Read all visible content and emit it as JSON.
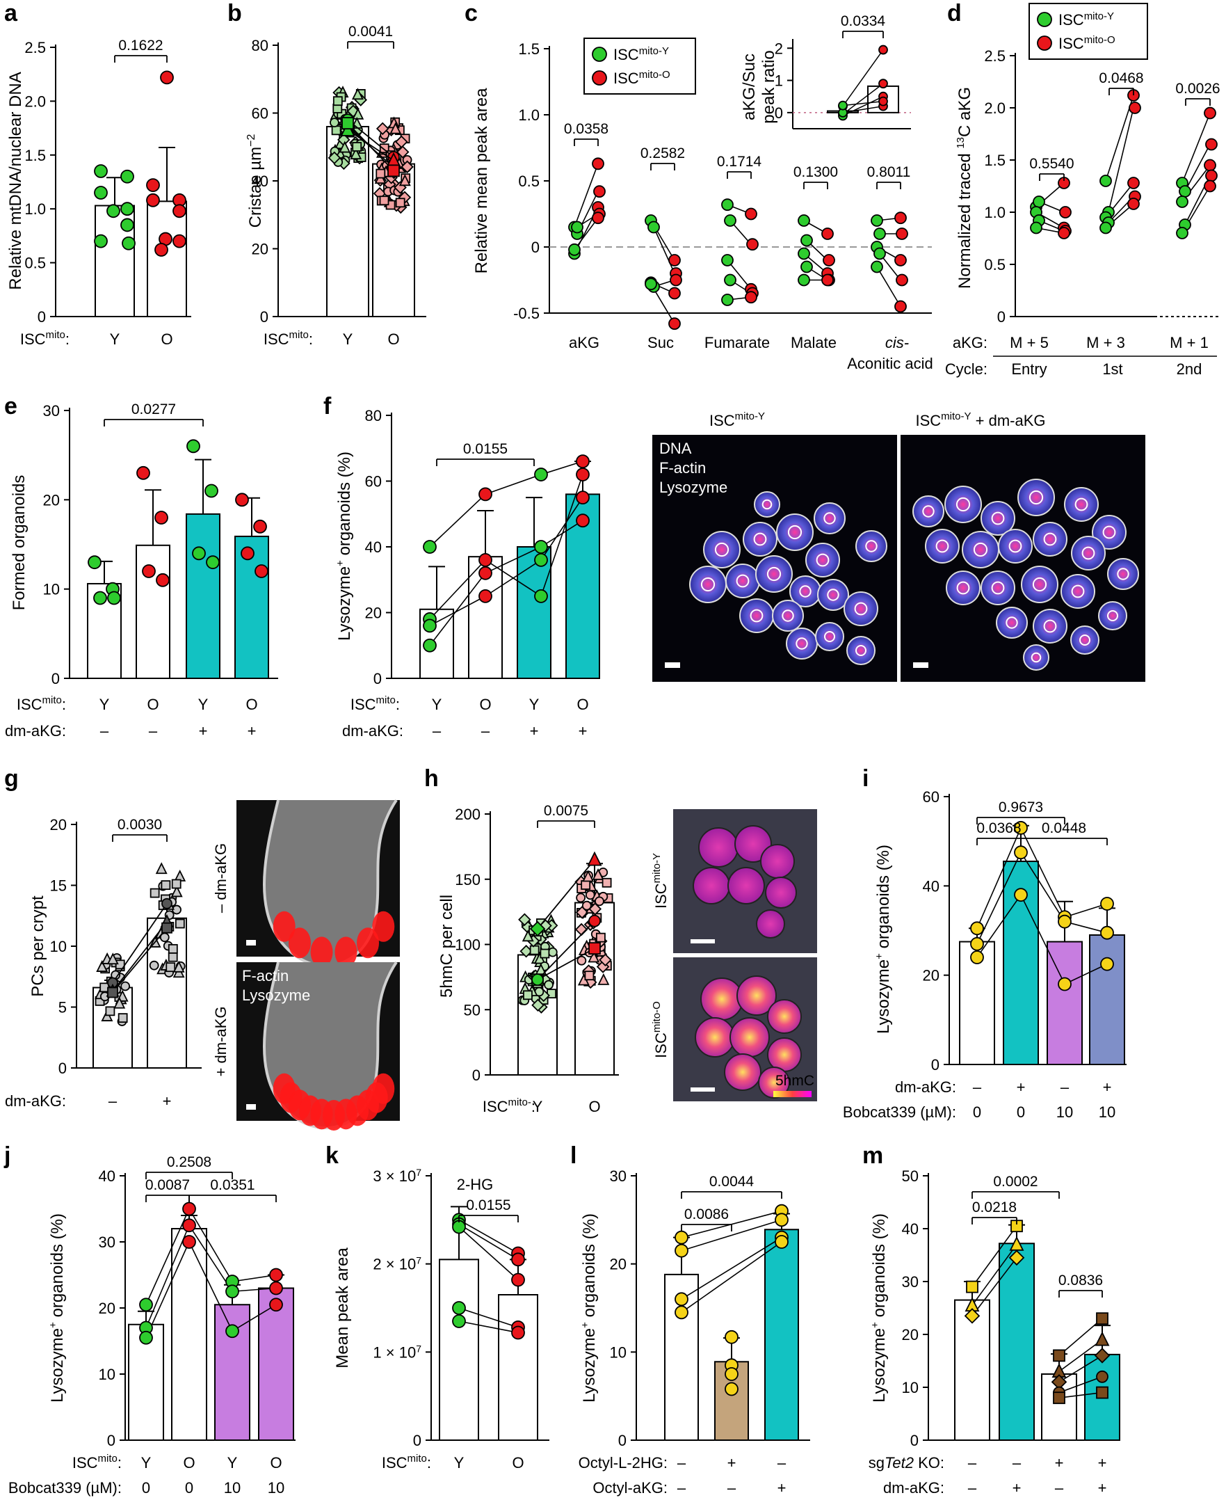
{
  "colors": {
    "young": "#2ecc2e",
    "old": "#e8161b",
    "teal": "#12c2c2",
    "purple": "#c77de0",
    "slate": "#7f8fc8",
    "gold": "#f5d318",
    "tan": "#c4a47c",
    "brown": "#7a4a1c",
    "grey": "#c8c8c8"
  },
  "panels": {
    "a": {
      "label": "a",
      "ylabel": "Relative mtDNA/nuclear DNA",
      "yticks": [
        "0",
        "0.5",
        "1.0",
        "1.5",
        "2.0",
        "2.5"
      ],
      "row_label": "ISCmito:",
      "cats": [
        "Y",
        "O"
      ],
      "pvalues": [
        "0.1622"
      ]
    },
    "b": {
      "label": "b",
      "ylabel": "Cristae µm−2",
      "yticks": [
        "0",
        "20",
        "40",
        "60",
        "80"
      ],
      "row_label": "ISCmito:",
      "cats": [
        "Y",
        "O"
      ],
      "pvalues": [
        "0.0041"
      ]
    },
    "c": {
      "label": "c",
      "ylabel": "Relative mean peak area",
      "yticks": [
        "-0.5",
        "0",
        "0.5",
        "1.0",
        "1.5"
      ],
      "cats": [
        "aKG",
        "Suc",
        "Fumarate",
        "Malate",
        "cis-",
        "Aconitic acid"
      ],
      "pvalues": [
        "0.0358",
        "0.2582",
        "0.1714",
        "0.1300",
        "0.8011"
      ],
      "legend": [
        "ISCmito-Y",
        "ISCmito-O"
      ],
      "inset": {
        "ylabel": "aKG/Suc peak ratio",
        "yticks": [
          "0",
          "1",
          "2"
        ],
        "pvalue": "0.0334"
      }
    },
    "d": {
      "label": "d",
      "ylabel": "Normalized traced 13C aKG",
      "yticks": [
        "0",
        "0.5",
        "1.0",
        "1.5",
        "2.0",
        "2.5"
      ],
      "legend": [
        "ISCmito-Y",
        "ISCmito-O"
      ],
      "row1_label": "aKG:",
      "row1": [
        "M + 5",
        "M + 3",
        "M + 1"
      ],
      "row2_label": "Cycle:",
      "row2": [
        "Entry",
        "1st",
        "2nd"
      ],
      "pvalues": [
        "0.5540",
        "0.0468",
        "0.0026"
      ]
    },
    "e": {
      "label": "e",
      "ylabel": "Formed organoids",
      "yticks": [
        "0",
        "10",
        "20",
        "30"
      ],
      "row1_label": "ISCmito:",
      "row1": [
        "Y",
        "O",
        "Y",
        "O"
      ],
      "row2_label": "dm-aKG:",
      "row2": [
        "–",
        "–",
        "+",
        "+"
      ],
      "pvalues": [
        "0.0277"
      ]
    },
    "f": {
      "label": "f",
      "ylabel": "Lysozyme+ organoids (%)",
      "yticks": [
        "0",
        "20",
        "40",
        "60",
        "80"
      ],
      "row1_label": "ISCmito:",
      "row1": [
        "Y",
        "O",
        "Y",
        "O"
      ],
      "row2_label": "dm-aKG:",
      "row2": [
        "–",
        "–",
        "+",
        "+"
      ],
      "pvalues": [
        "0.0155"
      ],
      "img1_title": "ISCmito-Y",
      "img2_title": "ISCmito-Y + dm-aKG",
      "stain1": "DNA",
      "stain2": "F-actin",
      "stain3": "Lysozyme"
    },
    "g": {
      "label": "g",
      "ylabel": "PCs per crypt",
      "yticks": [
        "0",
        "5",
        "10",
        "15",
        "20"
      ],
      "row_label": "dm-aKG:",
      "cats": [
        "–",
        "+"
      ],
      "pvalues": [
        "0.0030"
      ],
      "img_top": "– dm-aKG",
      "img_bottom": "+ dm-aKG",
      "stain1": "F-actin",
      "stain2": "Lysozyme"
    },
    "h": {
      "label": "h",
      "ylabel": "5hmC per cell",
      "yticks": [
        "0",
        "50",
        "100",
        "150",
        "200"
      ],
      "row_label": "ISCmito-:",
      "cats": [
        "Y",
        "O"
      ],
      "pvalues": [
        "0.0075"
      ],
      "img_top": "ISCmito-Y",
      "img_bottom": "ISCmito-O",
      "scale_label": "5hmC"
    },
    "i": {
      "label": "i",
      "ylabel": "Lysozyme+ organoids (%)",
      "yticks": [
        "0",
        "20",
        "40",
        "60"
      ],
      "row1_label": "dm-aKG:",
      "row1": [
        "–",
        "+",
        "–",
        "+"
      ],
      "row2_label": "Bobcat339 (µM):",
      "row2": [
        "0",
        "0",
        "10",
        "10"
      ],
      "pvalues": [
        "0.9673",
        "0.0368",
        "0.0448"
      ]
    },
    "j": {
      "label": "j",
      "ylabel": "Lysozyme+ organoids (%)",
      "yticks": [
        "0",
        "10",
        "20",
        "30",
        "40"
      ],
      "row1_label": "ISCmito:",
      "row1": [
        "Y",
        "O",
        "Y",
        "O"
      ],
      "row2_label": "Bobcat339 (µM):",
      "row2": [
        "0",
        "0",
        "10",
        "10"
      ],
      "pvalues": [
        "0.2508",
        "0.0087",
        "0.0351"
      ]
    },
    "k": {
      "label": "k",
      "title": "2-HG",
      "ylabel": "Mean peak area",
      "yticks": [
        "0",
        "1 × 10^7",
        "2 × 10^7",
        "3 × 10^7"
      ],
      "row_label": "ISCmito:",
      "cats": [
        "Y",
        "O"
      ],
      "pvalues": [
        "0.0155"
      ]
    },
    "l": {
      "label": "l",
      "ylabel": "Lysozyme+ organoids (%)",
      "yticks": [
        "0",
        "10",
        "20",
        "30"
      ],
      "row1_label": "Octyl-L-2HG:",
      "row1": [
        "–",
        "+",
        "–"
      ],
      "row2_label": "Octyl-aKG:",
      "row2": [
        "–",
        "–",
        "+"
      ],
      "pvalues": [
        "0.0044",
        "0.0086"
      ]
    },
    "m": {
      "label": "m",
      "ylabel": "Lysozyme+ organoids (%)",
      "yticks": [
        "0",
        "10",
        "20",
        "30",
        "40",
        "50"
      ],
      "row1_label": "sgTet2 KO:",
      "row1": [
        "–",
        "–",
        "+",
        "+"
      ],
      "row2_label": "dm-aKG:",
      "row2": [
        "–",
        "+",
        "–",
        "+"
      ],
      "pvalues": [
        "0.0002",
        "0.0218",
        "0.0836"
      ]
    }
  },
  "chart_data": [
    {
      "panel": "a",
      "type": "bar",
      "categories": [
        "Y",
        "O"
      ],
      "values": [
        1.03,
        1.07
      ],
      "errors": [
        0.26,
        0.5
      ],
      "ylim": [
        0,
        2.5
      ],
      "points": {
        "Y": [
          1.35,
          1.3,
          1.15,
          1.0,
          0.98,
          0.85,
          0.7,
          0.68
        ],
        "O": [
          2.22,
          1.22,
          1.08,
          1.08,
          0.98,
          0.72,
          0.7,
          0.62
        ]
      }
    },
    {
      "panel": "b",
      "type": "bar",
      "categories": [
        "Y",
        "O"
      ],
      "values": [
        56,
        45
      ],
      "errors": [
        3,
        4
      ],
      "ylim": [
        0,
        80
      ]
    },
    {
      "panel": "c",
      "type": "paired",
      "categories": [
        "aKG",
        "Suc",
        "Fumarate",
        "Malate",
        "cis-Aconitic acid"
      ],
      "ylim": [
        -0.5,
        1.5
      ],
      "young": [
        [
          0.15,
          0.1,
          -0.05,
          0.15,
          -0.02
        ],
        [
          0.2,
          0.15,
          -0.27,
          -0.3,
          -0.28
        ],
        [
          0.32,
          0.2,
          -0.1,
          -0.25,
          -0.4
        ],
        [
          0.2,
          0.05,
          -0.05,
          -0.15,
          -0.25
        ],
        [
          0.2,
          0.1,
          0.0,
          -0.05,
          -0.15
        ]
      ],
      "old": [
        [
          0.63,
          0.42,
          0.3,
          0.25,
          0.22
        ],
        [
          -0.1,
          -0.2,
          -0.35,
          -0.25,
          -0.58
        ],
        [
          0.25,
          0.02,
          -0.32,
          -0.35,
          -0.38
        ],
        [
          0.1,
          -0.1,
          -0.2,
          -0.25,
          -0.25
        ],
        [
          0.22,
          0.1,
          -0.1,
          -0.25,
          -0.45
        ]
      ],
      "inset": {
        "ylim": [
          -0.5,
          2.2
        ],
        "young": [
          0.2,
          -0.05,
          -0.1,
          0.0,
          0.22
        ],
        "old": [
          1.95,
          0.9,
          0.5,
          0.2,
          0.35
        ],
        "bars": [
          0.05,
          0.82
        ]
      }
    },
    {
      "panel": "d",
      "type": "paired",
      "categories": [
        "M + 5",
        "M + 3",
        "M + 1"
      ],
      "ylim": [
        0,
        2.5
      ],
      "young": [
        [
          1.05,
          1.1,
          1.0,
          0.92,
          0.85
        ],
        [
          1.3,
          1.0,
          0.95,
          0.9,
          0.85
        ],
        [
          1.28,
          1.2,
          1.1,
          0.88,
          0.8
        ]
      ],
      "old": [
        [
          1.28,
          1.0,
          0.85,
          0.82,
          0.8
        ],
        [
          2.12,
          2.0,
          1.28,
          1.15,
          1.08
        ],
        [
          1.95,
          1.65,
          1.45,
          1.35,
          1.25
        ]
      ]
    },
    {
      "panel": "e",
      "type": "bar",
      "categories": [
        "Y",
        "O",
        "Y+dm-aKG",
        "O+dm-aKG"
      ],
      "values": [
        10.6,
        14.9,
        18.4,
        15.9
      ],
      "errors": [
        2.5,
        6.2,
        6.1,
        4.3
      ],
      "ylim": [
        0,
        30
      ],
      "points": [
        [
          13,
          10,
          9,
          9
        ],
        [
          23,
          18,
          12,
          11
        ],
        [
          26,
          21,
          14,
          13
        ],
        [
          20,
          17,
          14,
          12
        ]
      ]
    },
    {
      "panel": "f",
      "type": "bar",
      "categories": [
        "Y",
        "O",
        "Y+dm-aKG",
        "O+dm-aKG"
      ],
      "values": [
        21,
        37,
        40,
        56
      ],
      "errors": [
        13,
        14,
        15,
        10
      ],
      "ylim": [
        0,
        80
      ],
      "points": [
        [
          40,
          18,
          16,
          10
        ],
        [
          56,
          36,
          32,
          25
        ],
        [
          62,
          36,
          25,
          40
        ],
        [
          66,
          62,
          55,
          48
        ]
      ]
    },
    {
      "panel": "g",
      "type": "bar",
      "categories": [
        "–",
        "+"
      ],
      "values": [
        6.6,
        12.3
      ],
      "errors": [
        0.6,
        1.4
      ],
      "ylim": [
        0,
        20
      ]
    },
    {
      "panel": "h",
      "type": "bar",
      "categories": [
        "Y",
        "O"
      ],
      "values": [
        92,
        132
      ],
      "errors": [
        15,
        30
      ],
      "ylim": [
        0,
        200
      ]
    },
    {
      "panel": "i",
      "type": "bar",
      "categories": [
        "–/0",
        "+/0",
        "–/10",
        "+/10"
      ],
      "values": [
        27.5,
        45.5,
        27.5,
        29
      ],
      "errors": [
        3,
        8,
        9,
        6
      ],
      "ylim": [
        0,
        60
      ],
      "points": [
        [
          30.5,
          27,
          24
        ],
        [
          53,
          47.5,
          38
        ],
        [
          33,
          32,
          18
        ],
        [
          36,
          29.5,
          22.5
        ]
      ]
    },
    {
      "panel": "j",
      "type": "bar",
      "categories": [
        "Y/0",
        "O/0",
        "Y/10",
        "O/10"
      ],
      "values": [
        17.5,
        32,
        20.5,
        23
      ],
      "errors": [
        2,
        2,
        3,
        2
      ],
      "ylim": [
        0,
        40
      ],
      "points": [
        [
          20.5,
          17,
          15.5
        ],
        [
          35,
          32.5,
          30
        ],
        [
          24,
          22.5,
          16.5
        ],
        [
          25,
          23,
          20.5
        ]
      ]
    },
    {
      "panel": "k",
      "type": "bar",
      "categories": [
        "Y",
        "O"
      ],
      "values": [
        20500000.0,
        16500000.0
      ],
      "errors": [
        6000000.0,
        4000000.0
      ],
      "ylim": [
        0,
        30000000.0
      ],
      "points": [
        [
          25000000.0,
          24500000.0,
          24200000.0,
          15000000.0,
          13500000.0
        ],
        [
          21200000.0,
          20500000.0,
          18200000.0,
          12800000.0,
          12200000.0
        ]
      ]
    },
    {
      "panel": "l",
      "type": "bar",
      "categories": [
        "ctrl",
        "Octyl-L-2HG",
        "Octyl-aKG"
      ],
      "values": [
        18.8,
        8.9,
        23.9
      ],
      "errors": [
        4.2,
        2.7,
        1.8
      ],
      "ylim": [
        0,
        30
      ],
      "points": [
        [
          23,
          21.5,
          16,
          14.5
        ],
        [
          11.7,
          8.5,
          7.5,
          5.8
        ],
        [
          26,
          25,
          23,
          22.5
        ]
      ]
    },
    {
      "panel": "m",
      "type": "bar",
      "categories": [
        "–/–",
        "–/+",
        "+/–",
        "+/+"
      ],
      "values": [
        26.5,
        37.2,
        12.5,
        16.2
      ],
      "errors": [
        3.5,
        3.5,
        3.8,
        5.5
      ],
      "ylim": [
        0,
        50
      ],
      "points": [
        [
          29,
          25.5,
          23.5
        ],
        [
          40.5,
          37,
          34.5
        ],
        [
          16,
          13,
          11,
          9,
          8
        ],
        [
          23,
          19,
          16,
          12,
          9
        ]
      ]
    }
  ]
}
